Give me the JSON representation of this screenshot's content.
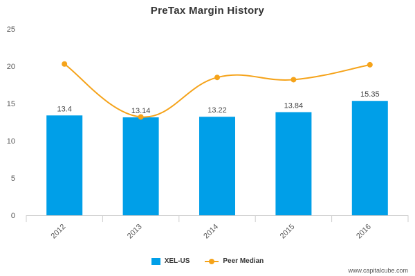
{
  "chart_data": {
    "type": "bar",
    "title": "PreTax Margin History",
    "categories": [
      "2012",
      "2013",
      "2014",
      "2015",
      "2016"
    ],
    "series": [
      {
        "name": "XEL-US",
        "type": "bar",
        "color": "#009fe8",
        "values": [
          13.4,
          13.14,
          13.22,
          13.84,
          15.35
        ],
        "labels": [
          "13.4",
          "13.14",
          "13.22",
          "13.84",
          "15.35"
        ]
      },
      {
        "name": "Peer Median",
        "type": "line",
        "color": "#f5a31a",
        "values": [
          20.3,
          13.2,
          18.5,
          18.2,
          20.2
        ]
      }
    ],
    "ylim": [
      0,
      25
    ],
    "yticks": [
      "0",
      "5",
      "10",
      "15",
      "20",
      "25"
    ],
    "grid": false,
    "legend_position": "bottom-center"
  },
  "legend": {
    "bar_label": "XEL-US",
    "line_label": "Peer Median"
  },
  "footer": {
    "source": "www.capitalcube.com"
  }
}
